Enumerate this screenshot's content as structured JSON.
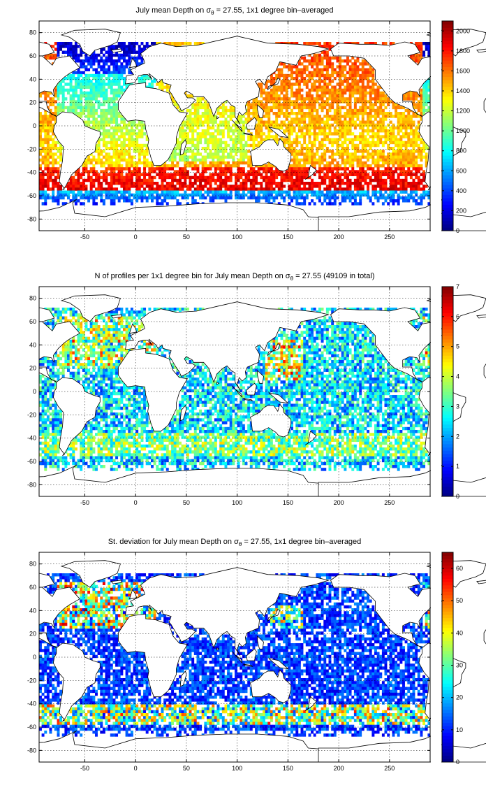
{
  "chart_data": [
    {
      "type": "heatmap",
      "title": "July mean Depth on σθ = 27.55, 1x1 degree bin–averaged",
      "title_parts": {
        "pre": "July mean Depth on ",
        "sym": "σ",
        "sub": "θ",
        "post": " = 27.55, 1x1 degree bin–averaged"
      },
      "xlim": [
        -95,
        290
      ],
      "ylim": [
        -90,
        90
      ],
      "xticks": [
        -50,
        0,
        50,
        100,
        150,
        200,
        250
      ],
      "yticks": [
        80,
        60,
        40,
        20,
        0,
        -20,
        -40,
        -60,
        -80
      ],
      "colorbar": {
        "min": 0,
        "max": 2100,
        "ticks": [
          0,
          200,
          400,
          600,
          800,
          1000,
          1200,
          1400,
          1600,
          1800,
          2000
        ]
      },
      "grid": true,
      "colormap": "jet"
    },
    {
      "type": "heatmap",
      "title": "N of profiles per 1x1 degree bin for July mean Depth on σθ = 27.55 (49109 in total)",
      "title_parts": {
        "pre": "N of profiles per 1x1 degree bin for July mean Depth on ",
        "sym": "σ",
        "sub": "θ",
        "post": " = 27.55 (49109 in total)"
      },
      "xlim": [
        -95,
        290
      ],
      "ylim": [
        -90,
        90
      ],
      "xticks": [
        -50,
        0,
        50,
        100,
        150,
        200,
        250
      ],
      "yticks": [
        80,
        60,
        40,
        20,
        0,
        -20,
        -40,
        -60,
        -80
      ],
      "colorbar": {
        "min": 0,
        "max": 7,
        "ticks": [
          0,
          1,
          2,
          3,
          4,
          5,
          6,
          7
        ]
      },
      "grid": true,
      "colormap": "jet"
    },
    {
      "type": "heatmap",
      "title": "St. deviation for July mean Depth on σθ = 27.55, 1x1 degree bin–averaged",
      "title_parts": {
        "pre": "St. deviation for July mean Depth on ",
        "sym": "σ",
        "sub": "θ",
        "post": " = 27.55, 1x1 degree bin–averaged"
      },
      "xlim": [
        -95,
        290
      ],
      "ylim": [
        -90,
        90
      ],
      "xticks": [
        -50,
        0,
        50,
        100,
        150,
        200,
        250
      ],
      "yticks": [
        80,
        60,
        40,
        20,
        0,
        -20,
        -40,
        -60,
        -80
      ],
      "colorbar": {
        "min": 0,
        "max": 65,
        "ticks": [
          0,
          10,
          20,
          30,
          40,
          50,
          60
        ]
      },
      "grid": true,
      "colormap": "jet"
    }
  ]
}
